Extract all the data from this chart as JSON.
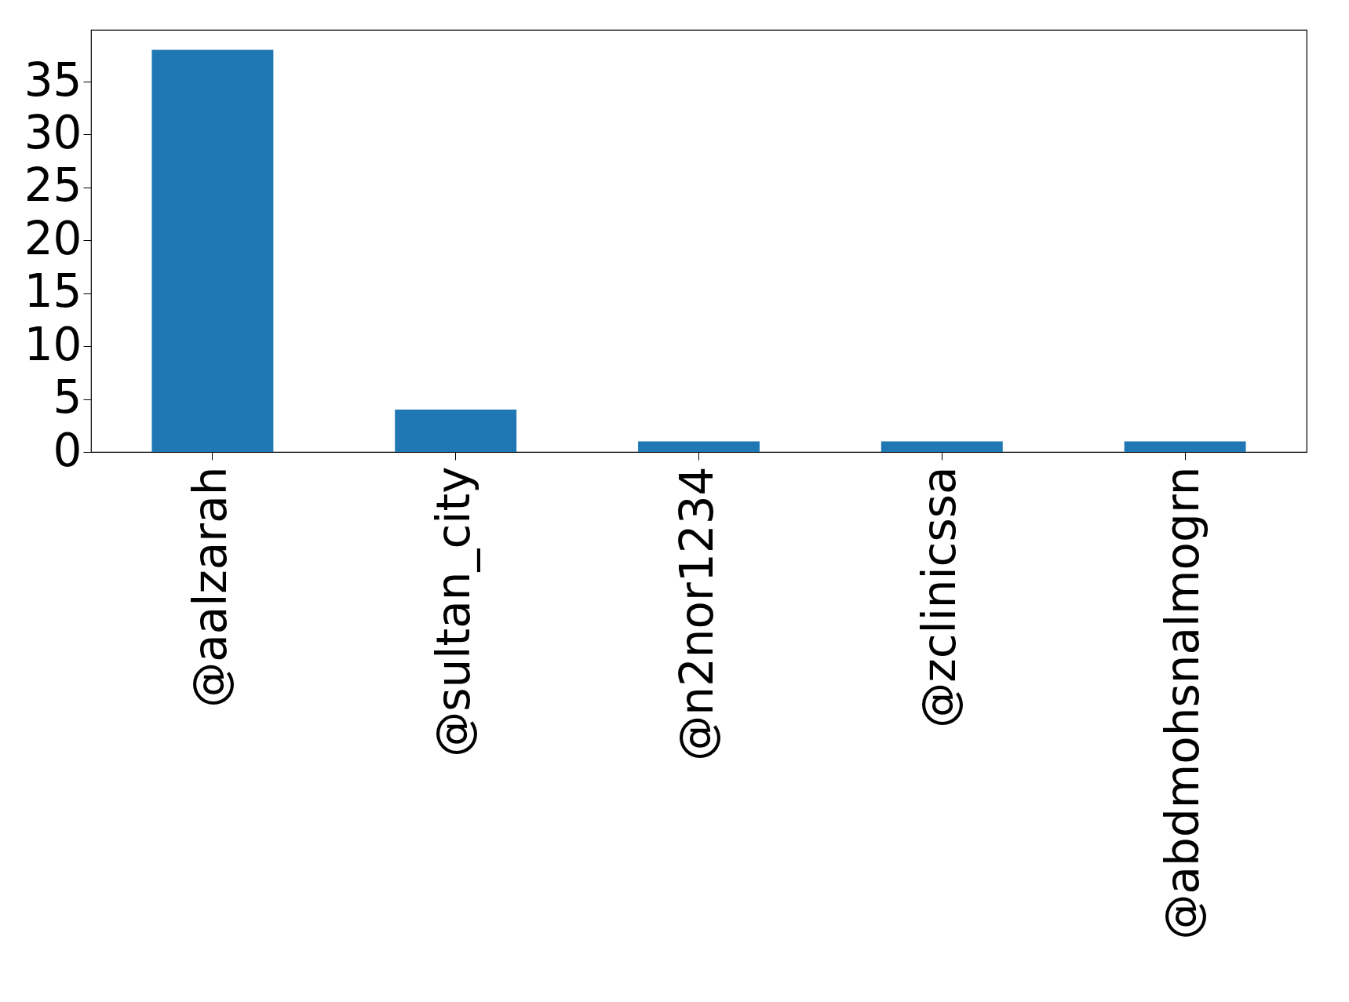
{
  "chart_data": {
    "type": "bar",
    "categories": [
      "@aalzarah",
      "@sultan_city",
      "@n2nor1234",
      "@zclinicssa",
      "@abdmohsnalmogrn"
    ],
    "values": [
      38,
      4,
      1,
      1,
      1
    ],
    "color": "#1f77b4",
    "ylim": [
      0,
      39.9
    ],
    "yticks": [
      0,
      5,
      10,
      15,
      20,
      25,
      30,
      35
    ]
  }
}
